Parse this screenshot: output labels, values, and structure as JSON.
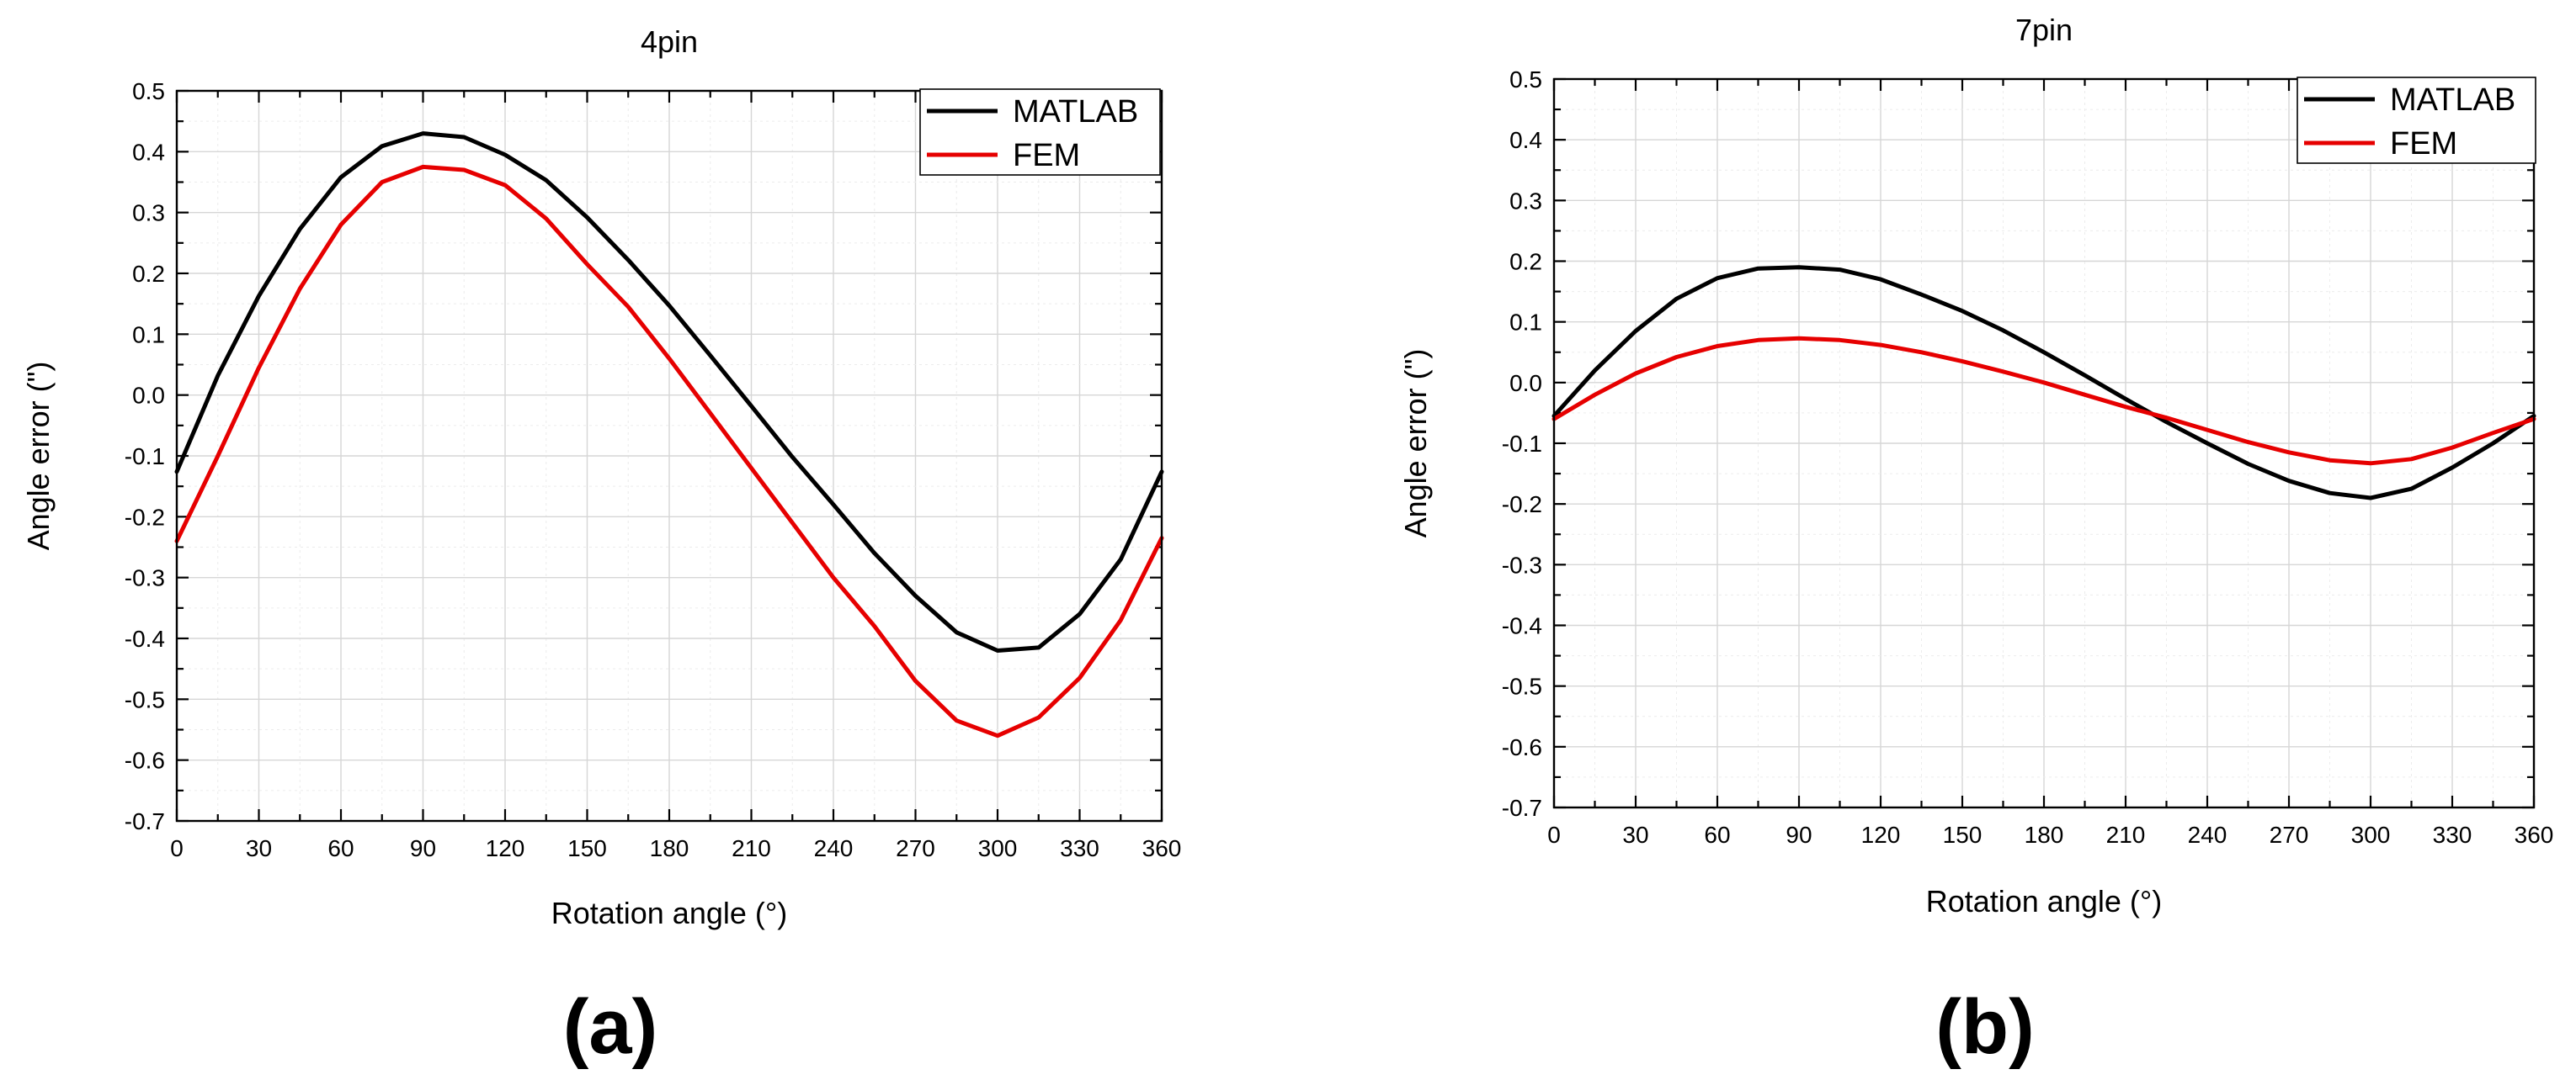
{
  "chart_data": [
    {
      "type": "line",
      "title": "4pin",
      "panel_label": "(a)",
      "xlabel": "Rotation angle (°)",
      "ylabel": "Angle error (\")",
      "xlim": [
        0,
        360
      ],
      "ylim": [
        -0.7,
        0.5
      ],
      "xticks": [
        0,
        30,
        60,
        90,
        120,
        150,
        180,
        210,
        240,
        270,
        300,
        330,
        360
      ],
      "yticks": [
        -0.7,
        -0.6,
        -0.5,
        -0.4,
        -0.3,
        -0.2,
        -0.1,
        0.0,
        0.1,
        0.2,
        0.3,
        0.4,
        0.5
      ],
      "ytick_labels": [
        "-0.7",
        "-0.6",
        "-0.5",
        "-0.4",
        "-0.3",
        "-0.2",
        "-0.1",
        "0.0",
        "0.1",
        "0.2",
        "0.3",
        "0.4",
        "0.5"
      ],
      "grid": true,
      "legend_position": "top-right",
      "x": [
        0,
        15,
        30,
        45,
        60,
        75,
        90,
        105,
        120,
        135,
        150,
        165,
        180,
        195,
        210,
        225,
        240,
        255,
        270,
        285,
        300,
        315,
        330,
        345,
        360
      ],
      "series": [
        {
          "name": "MATLAB",
          "color": "#000000",
          "values": [
            -0.126,
            0.032,
            0.163,
            0.273,
            0.358,
            0.409,
            0.43,
            0.424,
            0.395,
            0.353,
            0.292,
            0.222,
            0.147,
            0.065,
            -0.018,
            -0.102,
            -0.18,
            -0.26,
            -0.33,
            -0.39,
            -0.42,
            -0.415,
            -0.36,
            -0.27,
            -0.126
          ]
        },
        {
          "name": "FEM",
          "color": "#e60000",
          "values": [
            -0.24,
            -0.1,
            0.045,
            0.175,
            0.28,
            0.35,
            0.375,
            0.37,
            0.345,
            0.29,
            0.215,
            0.145,
            0.06,
            -0.03,
            -0.12,
            -0.21,
            -0.3,
            -0.38,
            -0.47,
            -0.535,
            -0.56,
            -0.53,
            -0.465,
            -0.37,
            -0.235
          ]
        }
      ]
    },
    {
      "type": "line",
      "title": "7pin",
      "panel_label": "(b)",
      "xlabel": "Rotation angle (°)",
      "ylabel": "Angle error (\")",
      "xlim": [
        0,
        360
      ],
      "ylim": [
        -0.7,
        0.5
      ],
      "xticks": [
        0,
        30,
        60,
        90,
        120,
        150,
        180,
        210,
        240,
        270,
        300,
        330,
        360
      ],
      "yticks": [
        -0.7,
        -0.6,
        -0.5,
        -0.4,
        -0.3,
        -0.2,
        -0.1,
        0.0,
        0.1,
        0.2,
        0.3,
        0.4,
        0.5
      ],
      "ytick_labels": [
        "-0.7",
        "-0.6",
        "-0.5",
        "-0.4",
        "-0.3",
        "-0.2",
        "-0.1",
        "0.0",
        "0.1",
        "0.2",
        "0.3",
        "0.4",
        "0.5"
      ],
      "grid": true,
      "legend_position": "top-right",
      "x": [
        0,
        15,
        30,
        45,
        60,
        75,
        90,
        105,
        120,
        135,
        150,
        165,
        180,
        195,
        210,
        225,
        240,
        255,
        270,
        285,
        300,
        315,
        330,
        345,
        360
      ],
      "series": [
        {
          "name": "MATLAB",
          "color": "#000000",
          "values": [
            -0.055,
            0.02,
            0.085,
            0.138,
            0.172,
            0.188,
            0.19,
            0.186,
            0.17,
            0.145,
            0.118,
            0.086,
            0.05,
            0.012,
            -0.027,
            -0.065,
            -0.1,
            -0.134,
            -0.162,
            -0.182,
            -0.19,
            -0.175,
            -0.14,
            -0.1,
            -0.055
          ]
        },
        {
          "name": "FEM",
          "color": "#e60000",
          "values": [
            -0.06,
            -0.02,
            0.015,
            0.042,
            0.06,
            0.07,
            0.073,
            0.07,
            0.062,
            0.05,
            0.035,
            0.018,
            0.0,
            -0.02,
            -0.04,
            -0.058,
            -0.078,
            -0.098,
            -0.115,
            -0.128,
            -0.133,
            -0.126,
            -0.107,
            -0.083,
            -0.06
          ]
        }
      ]
    }
  ]
}
